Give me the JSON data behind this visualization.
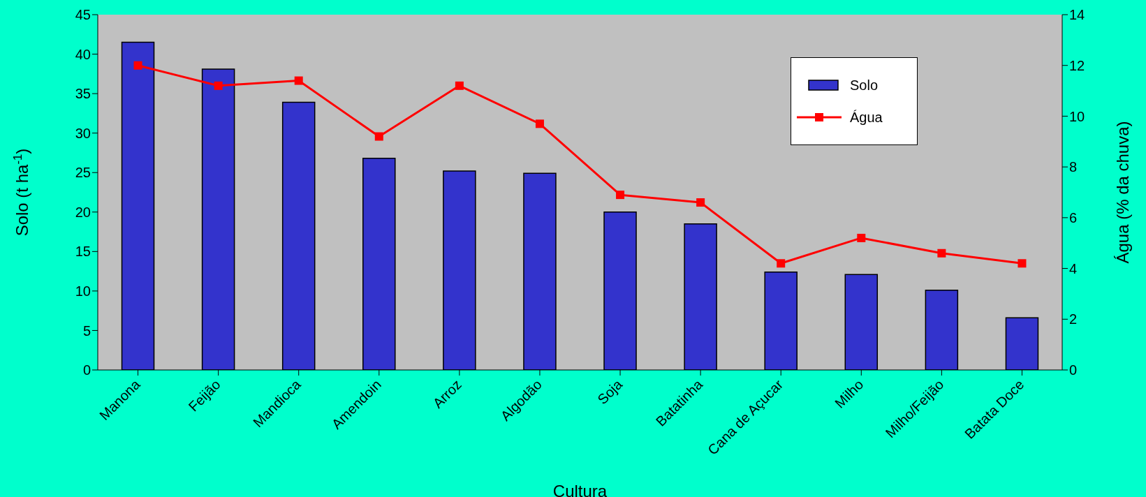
{
  "chart_data": {
    "type": "bar",
    "xlabel": "Cultura",
    "ylabel": "Solo (t ha$^{-1}$)",
    "y2label": "Água (% da chuva)",
    "categories": [
      "Manona",
      "Feijão",
      "Mandioca",
      "Amendoin",
      "Arroz",
      "Algodão",
      "Soja",
      "Batatinha",
      "Cana de Açucar",
      "Milho",
      "Milho/Feijão",
      "Batata Doce"
    ],
    "series": [
      {
        "name": "Solo",
        "color": "#3333cc",
        "values": [
          41.5,
          38.1,
          33.9,
          26.8,
          25.2,
          24.9,
          20.0,
          18.5,
          12.4,
          12.1,
          10.1,
          6.6
        ]
      },
      {
        "name": "Água",
        "type": "line",
        "axis": "y2",
        "color": "#ff0000",
        "marker": "square",
        "values": [
          12.0,
          11.2,
          11.4,
          9.2,
          11.2,
          9.7,
          6.9,
          6.6,
          4.2,
          5.2,
          4.6,
          4.2
        ]
      }
    ],
    "ylim": [
      0,
      45
    ],
    "yticks": [
      0,
      5,
      10,
      15,
      20,
      25,
      30,
      35,
      40,
      45
    ],
    "y2lim": [
      0,
      14
    ],
    "y2ticks": [
      0,
      2,
      4,
      6,
      8,
      10,
      12,
      14
    ],
    "grid": false,
    "legend": "top right"
  }
}
